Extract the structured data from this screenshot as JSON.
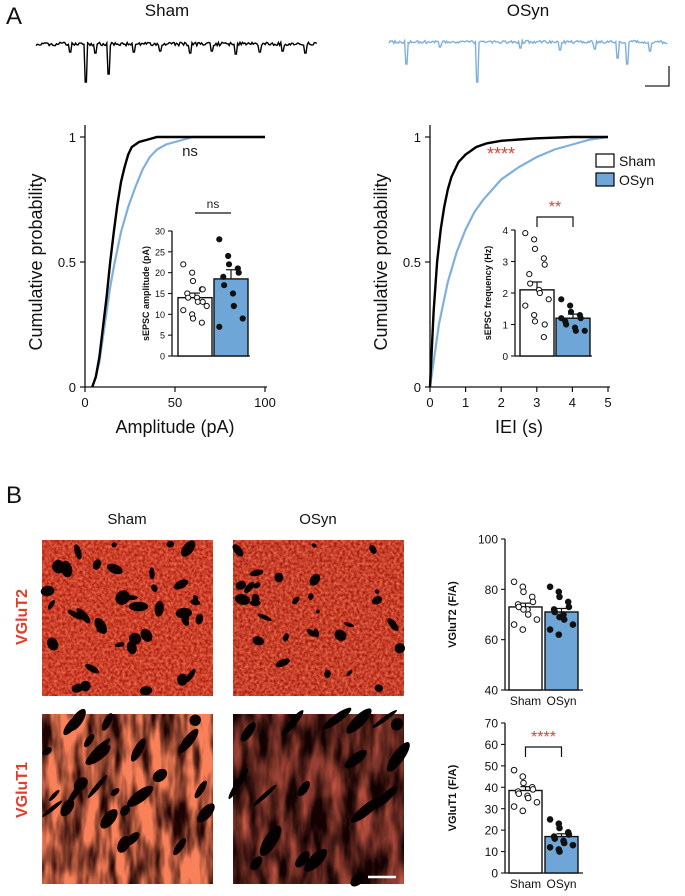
{
  "panel_labels": {
    "a": "A",
    "b": "B"
  },
  "groups": [
    "Sham",
    "OSyn"
  ],
  "colors": {
    "sham": "#000000",
    "osyn": "#7fb0dd",
    "osyn_bar": "#6fa6d8",
    "sig": "#e0402a",
    "micro_bg": "#1a0202",
    "micro_red": "#e8301a"
  },
  "traces": {
    "sham_label": "Sham",
    "osyn_label": "OSyn"
  },
  "legend": {
    "items": [
      "Sham",
      "OSyn"
    ]
  },
  "micrographs": {
    "col_labels": [
      "Sham",
      "OSyn"
    ],
    "row_labels": [
      "VGluT2",
      "VGluT1"
    ]
  },
  "chart_data": [
    {
      "id": "amp_cdf",
      "type": "line",
      "xlabel": "Amplitude (pA)",
      "ylabel": "Cumulative probability",
      "xlim": [
        0,
        100
      ],
      "ylim": [
        0,
        1
      ],
      "xticks": [
        "0",
        "50",
        "100"
      ],
      "yticks": [
        "0",
        "0.5",
        "1"
      ],
      "annotation": "ns",
      "series": [
        {
          "name": "Sham",
          "x": [
            4,
            6,
            8,
            10,
            12,
            14,
            16,
            18,
            20,
            22,
            24,
            26,
            30,
            35,
            40,
            50,
            60,
            100
          ],
          "y": [
            0,
            0.04,
            0.12,
            0.24,
            0.36,
            0.5,
            0.62,
            0.73,
            0.82,
            0.88,
            0.93,
            0.96,
            0.98,
            0.99,
            1,
            1,
            1,
            1
          ]
        },
        {
          "name": "OSyn",
          "x": [
            4,
            6,
            8,
            10,
            12,
            14,
            16,
            18,
            20,
            24,
            28,
            32,
            36,
            40,
            45,
            50,
            55,
            60,
            100
          ],
          "y": [
            0,
            0.04,
            0.1,
            0.2,
            0.3,
            0.4,
            0.48,
            0.55,
            0.62,
            0.72,
            0.8,
            0.87,
            0.92,
            0.95,
            0.97,
            0.98,
            0.99,
            1,
            1
          ]
        }
      ]
    },
    {
      "id": "amp_bar",
      "type": "bar",
      "categories": [
        "Sham",
        "OSyn"
      ],
      "ylabel": "sEPSC amplitude (pA)",
      "ylim": [
        0,
        30
      ],
      "yticks": [
        "0",
        "5",
        "10",
        "15",
        "20",
        "25",
        "30"
      ],
      "significance": "ns",
      "values": [
        14,
        18.5
      ],
      "sem": [
        1.1,
        2.2
      ],
      "points": [
        [
          22,
          20,
          18,
          16,
          16,
          15,
          14,
          14,
          13,
          12,
          11,
          10,
          9,
          8,
          13
        ],
        [
          28,
          24,
          22,
          21,
          20,
          19,
          17,
          15,
          12,
          9,
          7
        ]
      ]
    },
    {
      "id": "iei_cdf",
      "type": "line",
      "xlabel": "IEI (s)",
      "ylabel": "Cumulative probability",
      "xlim": [
        0,
        5
      ],
      "ylim": [
        0,
        1
      ],
      "xticks": [
        "0",
        "1",
        "2",
        "3",
        "4",
        "5"
      ],
      "yticks": [
        "0",
        "0.5",
        "1"
      ],
      "annotation": "****",
      "series": [
        {
          "name": "Sham",
          "x": [
            0,
            0.1,
            0.2,
            0.3,
            0.4,
            0.5,
            0.6,
            0.8,
            1.0,
            1.3,
            1.6,
            2.0,
            2.5,
            3.0,
            4.0,
            5.0
          ],
          "y": [
            0,
            0.3,
            0.5,
            0.63,
            0.72,
            0.79,
            0.84,
            0.9,
            0.93,
            0.96,
            0.975,
            0.985,
            0.99,
            0.995,
            1,
            1
          ]
        },
        {
          "name": "OSyn",
          "x": [
            0,
            0.1,
            0.25,
            0.5,
            0.75,
            1.0,
            1.25,
            1.5,
            2.0,
            2.5,
            3.0,
            3.5,
            4.0,
            4.5,
            5.0
          ],
          "y": [
            0,
            0.1,
            0.25,
            0.42,
            0.54,
            0.63,
            0.7,
            0.75,
            0.83,
            0.88,
            0.92,
            0.95,
            0.97,
            0.99,
            1
          ]
        }
      ]
    },
    {
      "id": "freq_bar",
      "type": "bar",
      "categories": [
        "Sham",
        "OSyn"
      ],
      "ylabel": "sEPSC frequency (Hz)",
      "ylim": [
        0,
        4
      ],
      "yticks": [
        "0",
        "1",
        "2",
        "3",
        "4"
      ],
      "significance": "**",
      "values": [
        2.1,
        1.2
      ],
      "sem": [
        0.25,
        0.13
      ],
      "points": [
        [
          3.9,
          3.7,
          3.4,
          3.1,
          2.9,
          2.6,
          2.3,
          2.1,
          2.0,
          1.8,
          1.6,
          1.3,
          1.1,
          0.6,
          1.0
        ],
        [
          1.8,
          1.6,
          1.4,
          1.3,
          1.2,
          1.1,
          1.0,
          0.9,
          0.8,
          0.8,
          1.2
        ]
      ]
    },
    {
      "id": "vglut2_bar",
      "type": "bar",
      "categories": [
        "Sham",
        "OSyn"
      ],
      "ylabel": "VGluT2 (F/A)",
      "ylim": [
        40,
        100
      ],
      "yticks": [
        "40",
        "60",
        "80",
        "100"
      ],
      "significance": "",
      "values": [
        73,
        71
      ],
      "sem": [
        1.5,
        1.4
      ],
      "points": [
        [
          83,
          81,
          79,
          77,
          75,
          74,
          73,
          72,
          70,
          68,
          66,
          64,
          72
        ],
        [
          81,
          79,
          77,
          75,
          73,
          72,
          71,
          70,
          68,
          66,
          64,
          62,
          69
        ]
      ]
    },
    {
      "id": "vglut1_bar",
      "type": "bar",
      "categories": [
        "Sham",
        "OSyn"
      ],
      "ylabel": "VGluT1 (F/A)",
      "ylim": [
        0,
        70
      ],
      "yticks": [
        "0",
        "10",
        "20",
        "30",
        "40",
        "50",
        "60",
        "70"
      ],
      "significance": "****",
      "values": [
        38.5,
        17
      ],
      "sem": [
        1.8,
        1.3
      ],
      "points": [
        [
          48,
          45,
          42,
          40,
          39,
          38,
          37,
          36,
          35,
          33,
          31,
          29
        ],
        [
          25,
          23,
          21,
          19,
          18,
          17,
          16,
          15,
          14,
          13,
          12,
          11,
          10
        ]
      ]
    }
  ]
}
